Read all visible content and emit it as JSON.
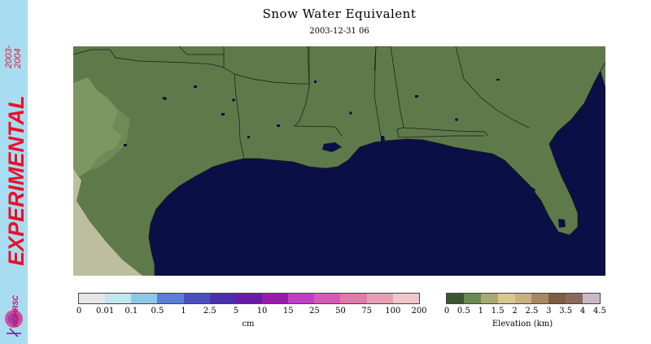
{
  "banner": {
    "label": "EXPERIMENTAL",
    "season": "2003-2004",
    "logo": "NOHRSC"
  },
  "title": "Snow Water Equivalent",
  "date": "2003-12-31 06",
  "colors": {
    "banner_bg": "#a8dcf0",
    "banner_text": "#e8102a",
    "land": "#5e7a4a",
    "highland": "#7d9760",
    "plateau": "#bdbda0",
    "water": "#0a0f45",
    "border": "#1a1a1a"
  },
  "swe_legend": {
    "unit": "cm",
    "ticks": [
      "0",
      "0.01",
      "0.1",
      "0.5",
      "1",
      "2.5",
      "5",
      "10",
      "15",
      "25",
      "50",
      "75",
      "100",
      "200"
    ],
    "colors": [
      "#e6e6e6",
      "#bfe8f0",
      "#8ec8e8",
      "#5a7fd6",
      "#4a4fbf",
      "#4b2fb0",
      "#6a1aa8",
      "#9a1ab0",
      "#c23ec4",
      "#d65ab8",
      "#e07aa8",
      "#e6a0b4",
      "#f0c8cc"
    ]
  },
  "elev_legend": {
    "unit": "Elevation (km)",
    "ticks": [
      "0",
      "0.5",
      "1",
      "1.5",
      "2",
      "2.5",
      "3",
      "3.5",
      "4",
      "4.5"
    ],
    "colors": [
      "#3d5530",
      "#6a8a50",
      "#a8a870",
      "#d8c890",
      "#c8b080",
      "#a88860",
      "#805c40",
      "#8a6a5a",
      "#c8b8c8"
    ]
  },
  "map": {
    "region": "Southeastern United States / Gulf of Mexico",
    "snow_present": false
  }
}
